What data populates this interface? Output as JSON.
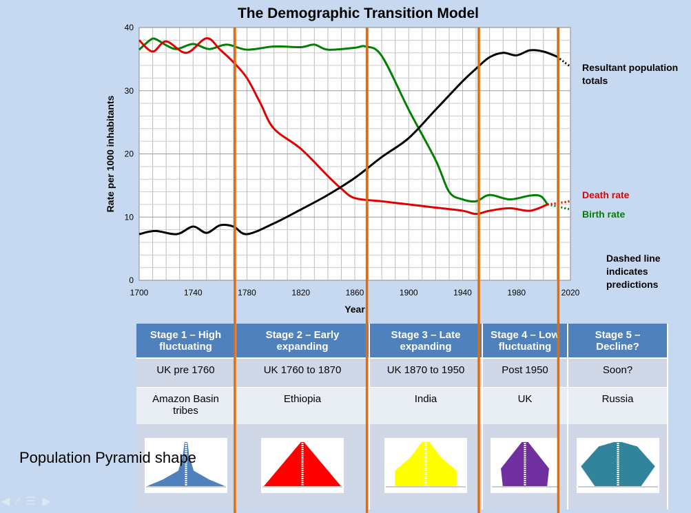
{
  "chart_data": {
    "type": "line",
    "title": "The Demographic Transition Model",
    "xlabel": "Year",
    "ylabel": "Rate per 1000 inhabitants",
    "xlim": [
      1700,
      2020
    ],
    "ylim": [
      0,
      40
    ],
    "x_ticks": [
      "1700",
      "1740",
      "1780",
      "1820",
      "1860",
      "1900",
      "1940",
      "1980",
      "2020"
    ],
    "y_ticks": [
      "0",
      "10",
      "20",
      "30",
      "40"
    ],
    "grid": true,
    "series": [
      {
        "name": "Birth rate",
        "color": "#008000",
        "x": [
          1700,
          1708,
          1712,
          1720,
          1728,
          1740,
          1752,
          1765,
          1780,
          1800,
          1820,
          1830,
          1840,
          1860,
          1868,
          1880,
          1900,
          1920,
          1930,
          1940,
          1950,
          1960,
          1975,
          1990,
          1998,
          2003
        ],
        "y": [
          36.5,
          38,
          38.2,
          37.2,
          36.6,
          37.4,
          36.6,
          37.3,
          36.5,
          37,
          36.9,
          37.3,
          36.5,
          36.8,
          37,
          35.5,
          27,
          19,
          14,
          12.8,
          12.5,
          13.5,
          12.8,
          13.4,
          13.3,
          12
        ],
        "predicted_x": [
          2003,
          2010,
          2020
        ],
        "predicted_y": [
          12,
          11.7,
          11.2
        ]
      },
      {
        "name": "Death rate",
        "color": "#e00000",
        "x": [
          1700,
          1710,
          1720,
          1735,
          1750,
          1760,
          1770,
          1780,
          1790,
          1800,
          1820,
          1840,
          1850,
          1860,
          1880,
          1900,
          1920,
          1940,
          1950,
          1960,
          1975,
          1990,
          2003
        ],
        "y": [
          38,
          36.2,
          37.8,
          36,
          38.3,
          36.5,
          34.5,
          32,
          28,
          24,
          20.8,
          16.5,
          14.5,
          13,
          12.5,
          12,
          11.5,
          11,
          10.5,
          11,
          11.4,
          11,
          12
        ],
        "predicted_x": [
          2003,
          2010,
          2020
        ],
        "predicted_y": [
          12,
          12.2,
          12.5
        ]
      },
      {
        "name": "Resultant population totals",
        "color": "#000000",
        "x": [
          1700,
          1712,
          1728,
          1740,
          1750,
          1760,
          1770,
          1780,
          1800,
          1820,
          1840,
          1860,
          1880,
          1900,
          1920,
          1940,
          1950,
          1960,
          1970,
          1980,
          1990,
          2000,
          2010
        ],
        "y": [
          7.3,
          7.8,
          7.3,
          8.5,
          7.5,
          8.7,
          8.5,
          7.3,
          9,
          11.2,
          13.5,
          16.2,
          19.5,
          22.5,
          27,
          31.5,
          33.5,
          35.3,
          36,
          35.6,
          36.4,
          36.2,
          35.4
        ],
        "predicted_x": [
          2010,
          2015,
          2020
        ],
        "predicted_y": [
          35.4,
          34.6,
          33.8
        ]
      }
    ],
    "stage_boundaries": [
      1771,
      1869,
      1952,
      2011
    ],
    "stage_line_color": "#e36c09"
  },
  "annotations": {
    "population": "Resultant population totals",
    "death": "Death rate",
    "birth": "Birth rate",
    "dashed": "Dashed line indicates predictions"
  },
  "table": {
    "headers": [
      "Stage 1 – High fluctuating",
      "Stage 2 – Early expanding",
      "Stage 3 – Late expanding",
      "Stage 4 – Low fluctuating",
      "Stage 5 – Decline?"
    ],
    "periods": [
      "UK pre 1760",
      "UK 1760 to 1870",
      "UK  1870 to 1950",
      "Post 1950",
      "Soon?"
    ],
    "examples": [
      "Amazon Basin tribes",
      "Ethiopia",
      "India",
      "UK",
      "Russia"
    ],
    "pyramid_colors": [
      "#4f81bd",
      "#ff0000",
      "#ffff00",
      "#7030a0",
      "#31849b"
    ]
  },
  "side_label": "Population Pyramid shape"
}
